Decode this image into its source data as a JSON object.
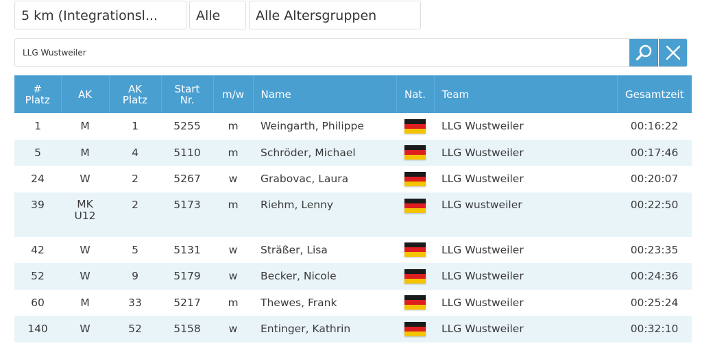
{
  "filters": {
    "distance": "5 km (Integrationsl...",
    "gender": "Alle",
    "age_group": "Alle Altersgruppen"
  },
  "search": {
    "value": "LLG Wustweiler",
    "search_icon": "magnifier-icon",
    "clear_icon": "close-icon"
  },
  "colors": {
    "header_bg": "#4a9fd1",
    "row_alt_bg": "#e9f4f9"
  },
  "table": {
    "headers": {
      "rank": [
        "#",
        "Platz"
      ],
      "ak": "AK",
      "ak_rank": [
        "AK",
        "Platz"
      ],
      "start_no": [
        "Start",
        "Nr."
      ],
      "gender": "m/w",
      "name": "Name",
      "nat": "Nat.",
      "team": "Team",
      "time": "Gesamtzeit"
    },
    "rows": [
      {
        "rank": "1",
        "ak": "M",
        "ak2": "",
        "ak_rank": "1",
        "start_no": "5255",
        "gender": "m",
        "name": "Weingarth, Philippe",
        "nat": "GER",
        "team": "LLG Wustweiler",
        "time": "00:16:22"
      },
      {
        "rank": "5",
        "ak": "M",
        "ak2": "",
        "ak_rank": "4",
        "start_no": "5110",
        "gender": "m",
        "name": "Schröder, Michael",
        "nat": "GER",
        "team": "LLG Wustweiler",
        "time": "00:17:46"
      },
      {
        "rank": "24",
        "ak": "W",
        "ak2": "",
        "ak_rank": "2",
        "start_no": "5267",
        "gender": "w",
        "name": "Grabovac, Laura",
        "nat": "GER",
        "team": "LLG Wustweiler",
        "time": "00:20:07"
      },
      {
        "rank": "39",
        "ak": "MK",
        "ak2": "U12",
        "ak_rank": "2",
        "start_no": "5173",
        "gender": "m",
        "name": "Riehm, Lenny",
        "nat": "GER",
        "team": "LLG wustweiler",
        "time": "00:22:50"
      },
      {
        "rank": "42",
        "ak": "W",
        "ak2": "",
        "ak_rank": "5",
        "start_no": "5131",
        "gender": "w",
        "name": "Sträßer, Lisa",
        "nat": "GER",
        "team": "LLG Wustweiler",
        "time": "00:23:35"
      },
      {
        "rank": "52",
        "ak": "W",
        "ak2": "",
        "ak_rank": "9",
        "start_no": "5179",
        "gender": "w",
        "name": "Becker, Nicole",
        "nat": "GER",
        "team": "LLG Wustweiler",
        "time": "00:24:36"
      },
      {
        "rank": "60",
        "ak": "M",
        "ak2": "",
        "ak_rank": "33",
        "start_no": "5217",
        "gender": "m",
        "name": "Thewes, Frank",
        "nat": "GER",
        "team": "LLG Wustweiler",
        "time": "00:25:24"
      },
      {
        "rank": "140",
        "ak": "W",
        "ak2": "",
        "ak_rank": "52",
        "start_no": "5158",
        "gender": "w",
        "name": "Entinger, Kathrin",
        "nat": "GER",
        "team": "LLG Wustweiler",
        "time": "00:32:10"
      }
    ]
  }
}
